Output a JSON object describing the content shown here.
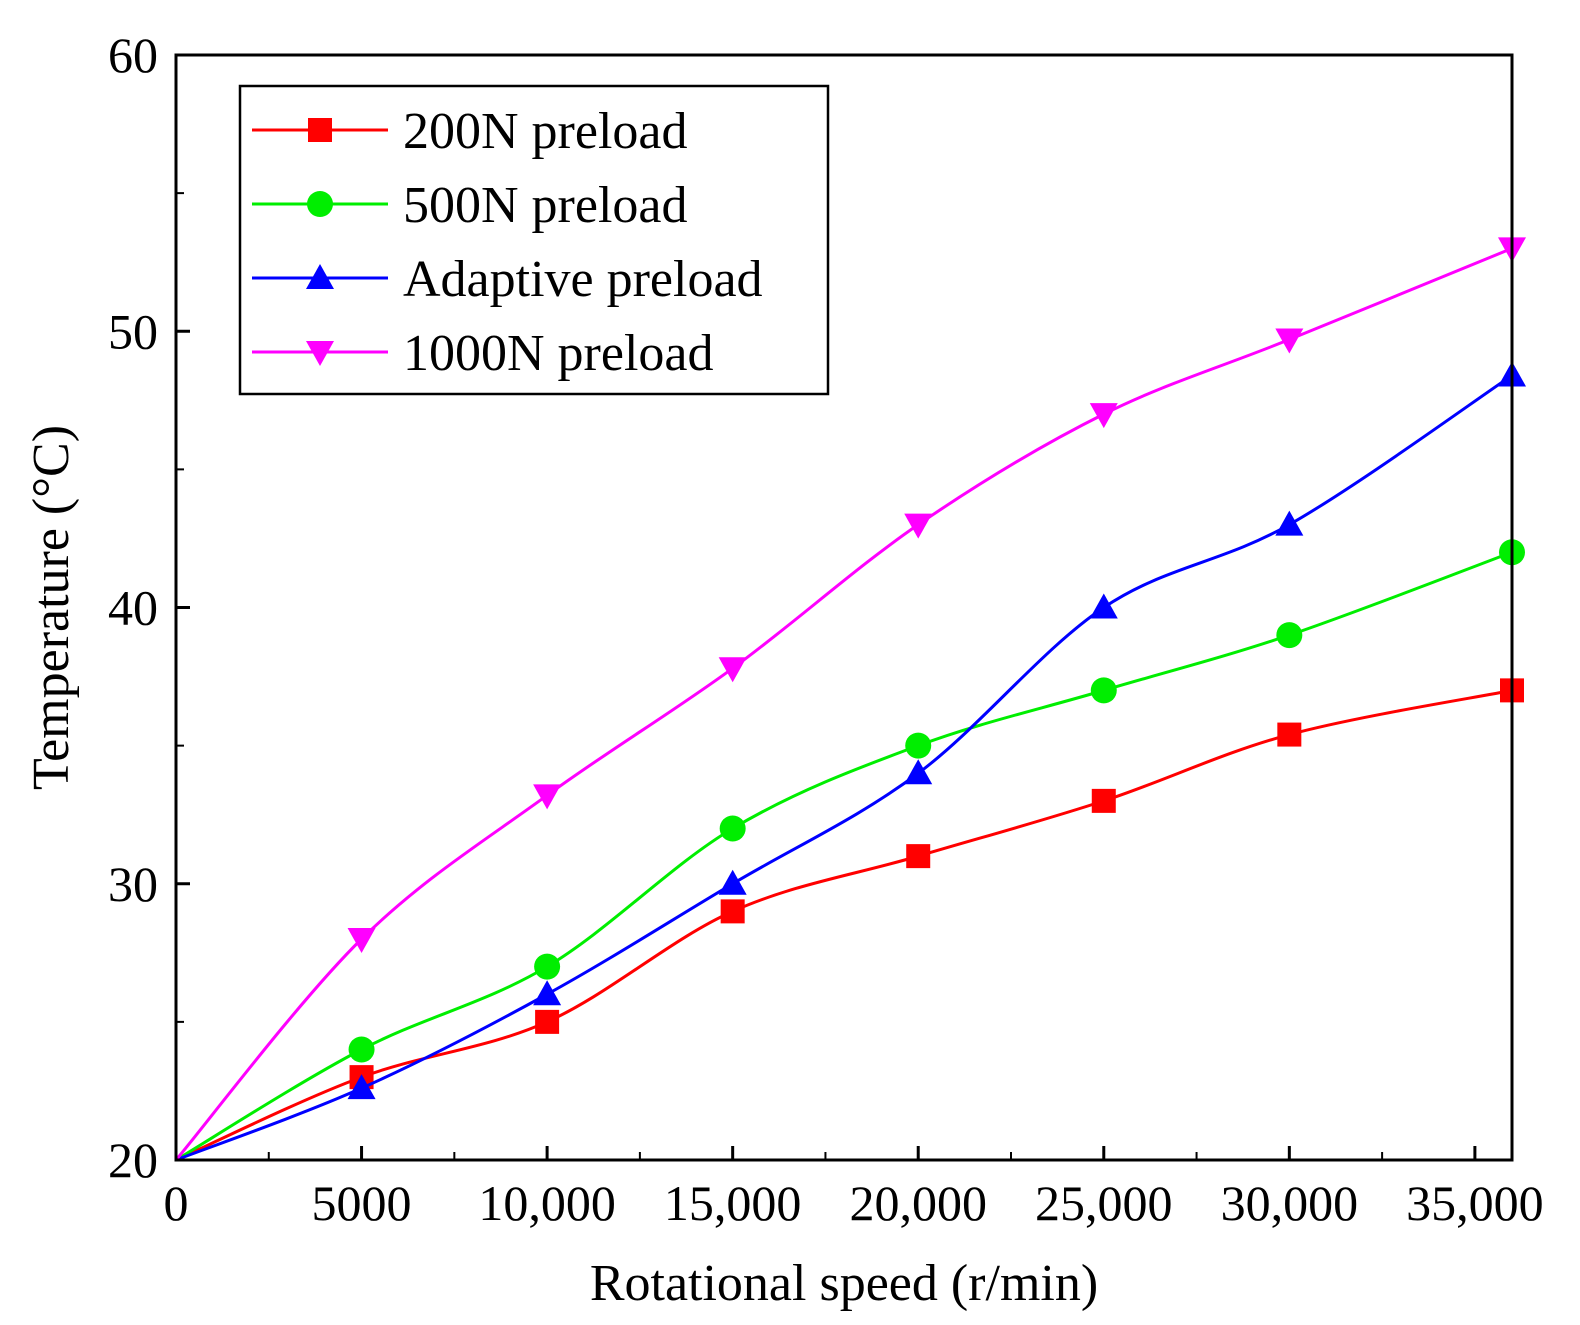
{
  "chart_data": {
    "type": "line",
    "title": "",
    "xlabel": "Rotational speed (r/min)",
    "ylabel": "Temperature (°C)",
    "xlim": [
      0,
      36000
    ],
    "ylim": [
      20,
      60
    ],
    "xticks": [
      {
        "value": 0,
        "label": "0"
      },
      {
        "value": 5000,
        "label": "5000"
      },
      {
        "value": 10000,
        "label": "10,000"
      },
      {
        "value": 15000,
        "label": "15,000"
      },
      {
        "value": 20000,
        "label": "20,000"
      },
      {
        "value": 25000,
        "label": "25,000"
      },
      {
        "value": 30000,
        "label": "30,000"
      },
      {
        "value": 35000,
        "label": "35,000"
      }
    ],
    "yticks": [
      {
        "value": 20,
        "label": "20"
      },
      {
        "value": 30,
        "label": "30"
      },
      {
        "value": 40,
        "label": "40"
      },
      {
        "value": 50,
        "label": "50"
      },
      {
        "value": 60,
        "label": "60"
      }
    ],
    "grid": false,
    "legend_position": "top-left",
    "x": [
      0,
      5000,
      10000,
      15000,
      20000,
      25000,
      30000,
      36000
    ],
    "series": [
      {
        "name": "200N preload",
        "color": "#ff0000",
        "marker": "square",
        "values": [
          20,
          23,
          25,
          29,
          31,
          33,
          35.4,
          37
        ]
      },
      {
        "name": "500N preload",
        "color": "#00ee00",
        "marker": "circle",
        "values": [
          20,
          24,
          27,
          32,
          35,
          37,
          39,
          42
        ]
      },
      {
        "name": "Adaptive preload",
        "color": "#0000ff",
        "marker": "triangle-up",
        "values": [
          20,
          22.6,
          26,
          30,
          34,
          40,
          43,
          48.4
        ]
      },
      {
        "name": "1000N preload",
        "color": "#ff00ff",
        "marker": "triangle-down",
        "values": [
          20,
          28,
          33.2,
          37.8,
          43,
          47,
          49.7,
          53
        ]
      }
    ]
  }
}
